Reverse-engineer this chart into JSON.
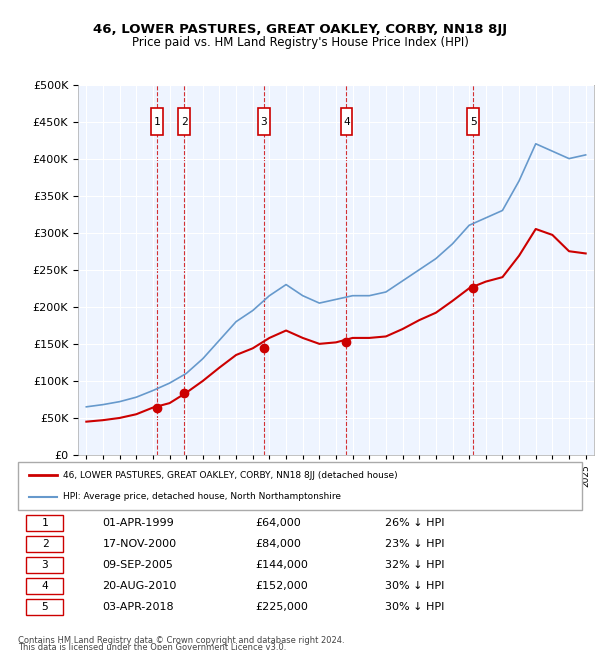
{
  "title": "46, LOWER PASTURES, GREAT OAKLEY, CORBY, NN18 8JJ",
  "subtitle": "Price paid vs. HM Land Registry's House Price Index (HPI)",
  "legend_line1": "46, LOWER PASTURES, GREAT OAKLEY, CORBY, NN18 8JJ (detached house)",
  "legend_line2": "HPI: Average price, detached house, North Northamptonshire",
  "footer1": "Contains HM Land Registry data © Crown copyright and database right 2024.",
  "footer2": "This data is licensed under the Open Government Licence v3.0.",
  "ylim": [
    0,
    500000
  ],
  "yticks": [
    0,
    50000,
    100000,
    150000,
    200000,
    250000,
    300000,
    350000,
    400000,
    450000,
    500000
  ],
  "xlim_start": 1994.5,
  "xlim_end": 2025.5,
  "sale_dates_x": [
    1999.25,
    2000.88,
    2005.68,
    2010.63,
    2018.25
  ],
  "sale_prices_y": [
    64000,
    84000,
    144000,
    152000,
    225000
  ],
  "sale_labels": [
    "1",
    "2",
    "3",
    "4",
    "5"
  ],
  "sale_label_dates": [
    "01-APR-1999",
    "17-NOV-2000",
    "09-SEP-2005",
    "20-AUG-2010",
    "03-APR-2018"
  ],
  "sale_label_prices": [
    "£64,000",
    "£84,000",
    "£144,000",
    "£152,000",
    "£225,000"
  ],
  "sale_label_hpi": [
    "26% ↓ HPI",
    "23% ↓ HPI",
    "32% ↓ HPI",
    "30% ↓ HPI",
    "30% ↓ HPI"
  ],
  "red_line_color": "#cc0000",
  "blue_line_color": "#6699cc",
  "bg_color": "#ddeeff",
  "plot_bg_color": "#eef4ff",
  "grid_color": "#ffffff",
  "box_color": "#cc0000",
  "dashed_color": "#cc0000"
}
